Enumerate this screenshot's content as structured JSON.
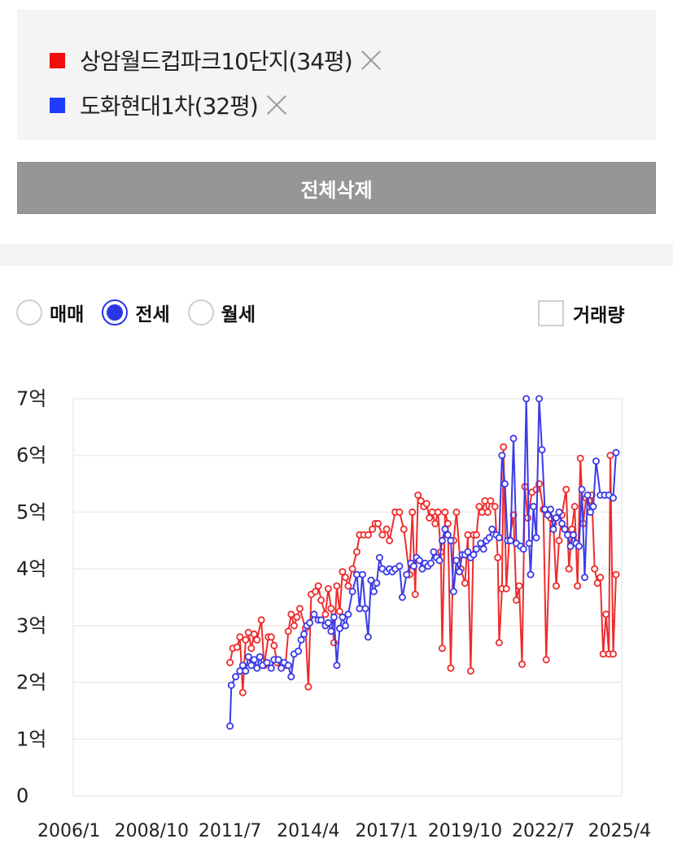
{
  "compare": {
    "items": [
      {
        "label": "상암월드컵파크10단지(34평)",
        "color": "#f20d0d"
      },
      {
        "label": "도화현대1차(32평)",
        "color": "#1f3dff"
      }
    ]
  },
  "actions": {
    "delete_all_label": "전체삭제"
  },
  "filters": {
    "trade_types": [
      {
        "label": "매매",
        "selected": false
      },
      {
        "label": "전세",
        "selected": true
      },
      {
        "label": "월세",
        "selected": false
      }
    ],
    "volume_label": "거래량",
    "volume_checked": false
  },
  "colors": {
    "series_red": "#ee2c2c",
    "series_blue": "#3a3ae8",
    "accent": "#2b35e8"
  },
  "chart_data": {
    "type": "line",
    "title": "",
    "xlabel": "",
    "ylabel": "",
    "ylim": [
      0,
      7
    ],
    "xlim": [
      2006.0,
      2025.25
    ],
    "yticks": [
      {
        "value": 0,
        "label": "0"
      },
      {
        "value": 1,
        "label": "1억"
      },
      {
        "value": 2,
        "label": "2억"
      },
      {
        "value": 3,
        "label": "3억"
      },
      {
        "value": 4,
        "label": "4억"
      },
      {
        "value": 5,
        "label": "5억"
      },
      {
        "value": 6,
        "label": "6억"
      },
      {
        "value": 7,
        "label": "7억"
      }
    ],
    "xticks": [
      {
        "value": 2006.0,
        "label": "2006/1"
      },
      {
        "value": 2008.75,
        "label": "2008/10"
      },
      {
        "value": 2011.5,
        "label": "2011/7"
      },
      {
        "value": 2014.25,
        "label": "2014/4"
      },
      {
        "value": 2017.0,
        "label": "2017/1"
      },
      {
        "value": 2019.75,
        "label": "2019/10"
      },
      {
        "value": 2022.5,
        "label": "2022/7"
      },
      {
        "value": 2025.25,
        "label": "2025/4"
      }
    ],
    "grid": true,
    "unit": "억",
    "series": [
      {
        "name": "상암월드컵파크10단지(34평)",
        "color": "#ee2c2c",
        "points": [
          [
            2011.5,
            2.35
          ],
          [
            2011.6,
            2.6
          ],
          [
            2011.75,
            2.62
          ],
          [
            2011.85,
            2.8
          ],
          [
            2011.95,
            1.82
          ],
          [
            2012.05,
            2.75
          ],
          [
            2012.15,
            2.88
          ],
          [
            2012.25,
            2.6
          ],
          [
            2012.35,
            2.85
          ],
          [
            2012.45,
            2.75
          ],
          [
            2012.6,
            3.1
          ],
          [
            2012.7,
            2.3
          ],
          [
            2012.85,
            2.8
          ],
          [
            2012.95,
            2.8
          ],
          [
            2013.05,
            2.65
          ],
          [
            2013.15,
            2.35
          ],
          [
            2013.3,
            2.35
          ],
          [
            2013.45,
            2.3
          ],
          [
            2013.55,
            2.9
          ],
          [
            2013.65,
            3.2
          ],
          [
            2013.75,
            3.0
          ],
          [
            2013.85,
            3.15
          ],
          [
            2013.95,
            3.3
          ],
          [
            2014.15,
            2.95
          ],
          [
            2014.25,
            1.92
          ],
          [
            2014.35,
            3.55
          ],
          [
            2014.5,
            3.6
          ],
          [
            2014.6,
            3.7
          ],
          [
            2014.7,
            3.45
          ],
          [
            2014.85,
            3.2
          ],
          [
            2014.95,
            3.65
          ],
          [
            2015.05,
            3.3
          ],
          [
            2015.15,
            2.7
          ],
          [
            2015.25,
            3.7
          ],
          [
            2015.35,
            3.25
          ],
          [
            2015.45,
            3.95
          ],
          [
            2015.55,
            3.85
          ],
          [
            2015.65,
            3.7
          ],
          [
            2015.8,
            4.0
          ],
          [
            2015.95,
            4.3
          ],
          [
            2016.05,
            4.6
          ],
          [
            2016.2,
            4.6
          ],
          [
            2016.35,
            4.6
          ],
          [
            2016.5,
            4.7
          ],
          [
            2016.6,
            4.8
          ],
          [
            2016.7,
            4.8
          ],
          [
            2016.85,
            4.6
          ],
          [
            2017.0,
            4.7
          ],
          [
            2017.1,
            4.5
          ],
          [
            2017.3,
            5.0
          ],
          [
            2017.45,
            5.0
          ],
          [
            2017.6,
            4.7
          ],
          [
            2017.8,
            3.9
          ],
          [
            2017.9,
            5.0
          ],
          [
            2018.0,
            3.55
          ],
          [
            2018.1,
            5.3
          ],
          [
            2018.2,
            5.2
          ],
          [
            2018.3,
            5.1
          ],
          [
            2018.4,
            5.15
          ],
          [
            2018.5,
            4.9
          ],
          [
            2018.6,
            5.0
          ],
          [
            2018.7,
            4.8
          ],
          [
            2018.8,
            5.0
          ],
          [
            2018.9,
            4.3
          ],
          [
            2018.95,
            2.6
          ],
          [
            2019.05,
            5.0
          ],
          [
            2019.15,
            4.8
          ],
          [
            2019.25,
            2.25
          ],
          [
            2019.35,
            4.5
          ],
          [
            2019.45,
            5.0
          ],
          [
            2019.6,
            4.0
          ],
          [
            2019.75,
            3.75
          ],
          [
            2019.85,
            4.6
          ],
          [
            2019.95,
            2.2
          ],
          [
            2020.05,
            4.6
          ],
          [
            2020.15,
            4.6
          ],
          [
            2020.25,
            5.1
          ],
          [
            2020.35,
            5.0
          ],
          [
            2020.45,
            5.2
          ],
          [
            2020.55,
            5.0
          ],
          [
            2020.65,
            5.2
          ],
          [
            2020.8,
            5.1
          ],
          [
            2020.9,
            4.2
          ],
          [
            2020.95,
            2.7
          ],
          [
            2021.05,
            3.65
          ],
          [
            2021.1,
            6.15
          ],
          [
            2021.2,
            3.65
          ],
          [
            2021.3,
            4.5
          ],
          [
            2021.45,
            4.95
          ],
          [
            2021.55,
            3.45
          ],
          [
            2021.65,
            3.7
          ],
          [
            2021.75,
            2.32
          ],
          [
            2021.85,
            5.45
          ],
          [
            2021.95,
            4.9
          ],
          [
            2022.1,
            5.35
          ],
          [
            2022.25,
            5.4
          ],
          [
            2022.35,
            5.5
          ],
          [
            2022.5,
            5.05
          ],
          [
            2022.6,
            2.4
          ],
          [
            2022.75,
            4.9
          ],
          [
            2022.85,
            4.8
          ],
          [
            2022.95,
            3.7
          ],
          [
            2023.05,
            4.5
          ],
          [
            2023.15,
            4.95
          ],
          [
            2023.3,
            5.4
          ],
          [
            2023.4,
            4.0
          ],
          [
            2023.5,
            4.7
          ],
          [
            2023.6,
            5.1
          ],
          [
            2023.7,
            3.7
          ],
          [
            2023.8,
            5.95
          ],
          [
            2023.9,
            4.8
          ],
          [
            2024.0,
            5.25
          ],
          [
            2024.1,
            5.2
          ],
          [
            2024.2,
            5.3
          ],
          [
            2024.3,
            4.0
          ],
          [
            2024.4,
            3.75
          ],
          [
            2024.5,
            3.85
          ],
          [
            2024.6,
            2.5
          ],
          [
            2024.7,
            3.2
          ],
          [
            2024.8,
            2.5
          ],
          [
            2024.85,
            6.0
          ],
          [
            2024.95,
            2.5
          ],
          [
            2025.05,
            3.9
          ]
        ]
      },
      {
        "name": "도화현대1차(32평)",
        "color": "#3a3ae8",
        "points": [
          [
            2011.5,
            1.23
          ],
          [
            2011.55,
            1.95
          ],
          [
            2011.7,
            2.1
          ],
          [
            2011.85,
            2.2
          ],
          [
            2011.95,
            2.3
          ],
          [
            2012.05,
            2.2
          ],
          [
            2012.15,
            2.45
          ],
          [
            2012.25,
            2.3
          ],
          [
            2012.35,
            2.4
          ],
          [
            2012.45,
            2.25
          ],
          [
            2012.55,
            2.45
          ],
          [
            2012.65,
            2.3
          ],
          [
            2012.8,
            2.35
          ],
          [
            2012.95,
            2.25
          ],
          [
            2013.05,
            2.4
          ],
          [
            2013.2,
            2.4
          ],
          [
            2013.3,
            2.25
          ],
          [
            2013.4,
            2.35
          ],
          [
            2013.55,
            2.3
          ],
          [
            2013.65,
            2.1
          ],
          [
            2013.75,
            2.5
          ],
          [
            2013.9,
            2.55
          ],
          [
            2014.0,
            2.75
          ],
          [
            2014.1,
            2.85
          ],
          [
            2014.2,
            3.0
          ],
          [
            2014.3,
            3.05
          ],
          [
            2014.45,
            3.2
          ],
          [
            2014.6,
            3.1
          ],
          [
            2014.7,
            3.1
          ],
          [
            2014.85,
            3.0
          ],
          [
            2014.95,
            3.05
          ],
          [
            2015.05,
            2.9
          ],
          [
            2015.15,
            3.15
          ],
          [
            2015.25,
            2.3
          ],
          [
            2015.35,
            2.95
          ],
          [
            2015.45,
            3.15
          ],
          [
            2015.55,
            3.0
          ],
          [
            2015.65,
            3.2
          ],
          [
            2015.8,
            3.6
          ],
          [
            2015.95,
            3.9
          ],
          [
            2016.05,
            3.3
          ],
          [
            2016.15,
            3.9
          ],
          [
            2016.25,
            3.3
          ],
          [
            2016.35,
            2.8
          ],
          [
            2016.45,
            3.8
          ],
          [
            2016.55,
            3.6
          ],
          [
            2016.65,
            3.75
          ],
          [
            2016.75,
            4.2
          ],
          [
            2016.85,
            4.0
          ],
          [
            2017.0,
            3.95
          ],
          [
            2017.1,
            4.0
          ],
          [
            2017.2,
            3.95
          ],
          [
            2017.3,
            4.0
          ],
          [
            2017.45,
            4.05
          ],
          [
            2017.55,
            3.5
          ],
          [
            2017.7,
            3.9
          ],
          [
            2017.85,
            4.1
          ],
          [
            2017.95,
            4.05
          ],
          [
            2018.05,
            4.2
          ],
          [
            2018.15,
            4.15
          ],
          [
            2018.25,
            4.0
          ],
          [
            2018.35,
            4.1
          ],
          [
            2018.45,
            4.05
          ],
          [
            2018.55,
            4.1
          ],
          [
            2018.65,
            4.3
          ],
          [
            2018.75,
            4.2
          ],
          [
            2018.85,
            4.15
          ],
          [
            2018.95,
            4.5
          ],
          [
            2019.05,
            4.7
          ],
          [
            2019.15,
            4.6
          ],
          [
            2019.25,
            4.5
          ],
          [
            2019.35,
            3.6
          ],
          [
            2019.45,
            4.15
          ],
          [
            2019.55,
            3.95
          ],
          [
            2019.65,
            4.25
          ],
          [
            2019.75,
            4.25
          ],
          [
            2019.85,
            4.3
          ],
          [
            2019.95,
            4.2
          ],
          [
            2020.05,
            4.25
          ],
          [
            2020.15,
            4.35
          ],
          [
            2020.3,
            4.45
          ],
          [
            2020.4,
            4.35
          ],
          [
            2020.5,
            4.5
          ],
          [
            2020.6,
            4.55
          ],
          [
            2020.7,
            4.7
          ],
          [
            2020.85,
            4.6
          ],
          [
            2020.95,
            4.55
          ],
          [
            2021.05,
            6.0
          ],
          [
            2021.15,
            5.5
          ],
          [
            2021.25,
            4.5
          ],
          [
            2021.35,
            4.5
          ],
          [
            2021.45,
            6.3
          ],
          [
            2021.55,
            4.45
          ],
          [
            2021.7,
            4.4
          ],
          [
            2021.8,
            4.35
          ],
          [
            2021.9,
            7.0
          ],
          [
            2022.0,
            4.45
          ],
          [
            2022.05,
            3.9
          ],
          [
            2022.15,
            5.1
          ],
          [
            2022.25,
            4.55
          ],
          [
            2022.35,
            7.0
          ],
          [
            2022.45,
            6.1
          ],
          [
            2022.55,
            5.05
          ],
          [
            2022.65,
            4.95
          ],
          [
            2022.75,
            5.05
          ],
          [
            2022.85,
            4.7
          ],
          [
            2022.95,
            4.9
          ],
          [
            2023.05,
            5.0
          ],
          [
            2023.15,
            4.8
          ],
          [
            2023.25,
            4.7
          ],
          [
            2023.35,
            4.6
          ],
          [
            2023.45,
            4.4
          ],
          [
            2023.55,
            4.6
          ],
          [
            2023.65,
            4.45
          ],
          [
            2023.75,
            4.4
          ],
          [
            2023.85,
            5.4
          ],
          [
            2023.95,
            3.85
          ],
          [
            2024.05,
            5.3
          ],
          [
            2024.15,
            5.0
          ],
          [
            2024.25,
            5.1
          ],
          [
            2024.35,
            5.9
          ],
          [
            2024.5,
            5.3
          ],
          [
            2024.65,
            5.3
          ],
          [
            2024.8,
            5.3
          ],
          [
            2024.95,
            5.25
          ],
          [
            2025.05,
            6.05
          ]
        ]
      }
    ]
  }
}
